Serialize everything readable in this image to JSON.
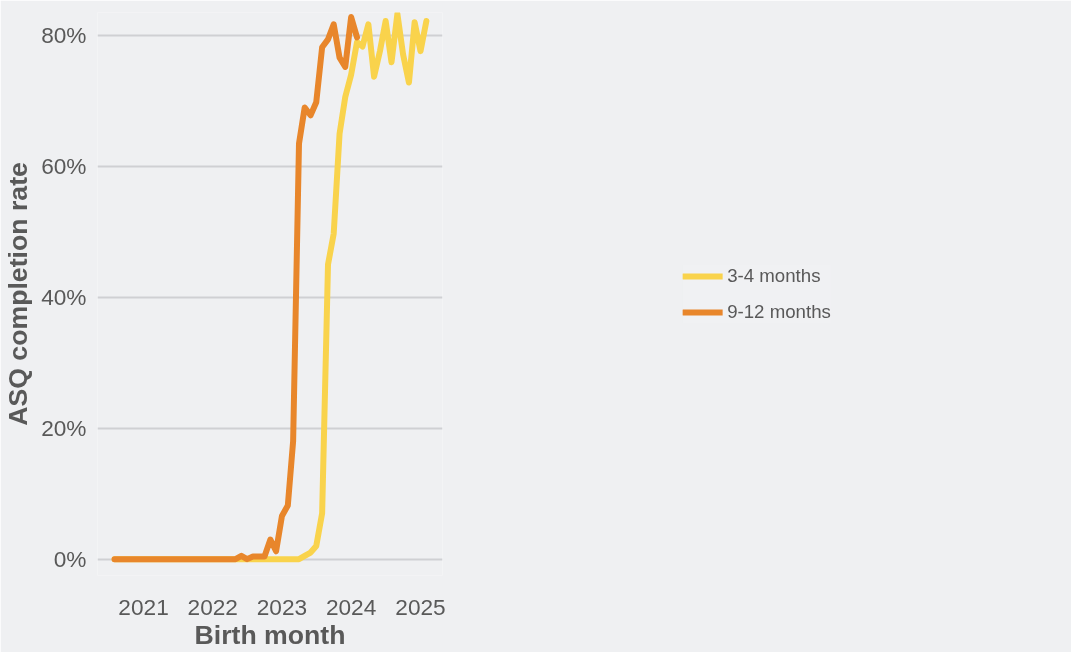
{
  "chart_data": {
    "type": "line",
    "xlabel": "Birth month",
    "ylabel": "ASQ completion rate",
    "x": [
      "2020-08",
      "2020-09",
      "2020-10",
      "2020-11",
      "2020-12",
      "2021-01",
      "2021-02",
      "2021-03",
      "2021-04",
      "2021-05",
      "2021-06",
      "2021-07",
      "2021-08",
      "2021-09",
      "2021-10",
      "2021-11",
      "2021-12",
      "2022-01",
      "2022-02",
      "2022-03",
      "2022-04",
      "2022-05",
      "2022-06",
      "2022-07",
      "2022-08",
      "2022-09",
      "2022-10",
      "2022-11",
      "2022-12",
      "2023-01",
      "2023-02",
      "2023-03",
      "2023-04",
      "2023-05",
      "2023-06",
      "2023-07",
      "2023-08",
      "2023-09",
      "2023-10",
      "2023-11",
      "2023-12",
      "2024-01",
      "2024-02",
      "2024-03",
      "2024-04",
      "2024-05",
      "2024-06",
      "2024-07",
      "2024-08",
      "2024-09",
      "2024-10",
      "2024-11",
      "2024-12",
      "2025-01",
      "2025-02"
    ],
    "series": [
      {
        "name": "3-4 months",
        "color": "#f9d34c",
        "values": [
          0,
          0,
          0,
          0,
          0,
          0,
          0,
          0,
          0,
          0,
          0,
          0,
          0,
          0,
          0,
          0,
          0,
          0,
          0,
          0,
          0,
          0,
          0,
          0,
          0,
          0,
          0,
          0,
          0,
          0,
          0,
          0,
          0,
          0.5,
          1,
          2,
          7,
          45,
          49.7,
          65,
          70.6,
          74,
          79,
          78.3,
          81.7,
          73.7,
          77.6,
          82.2,
          75.9,
          83.3,
          77.1,
          72.8,
          82,
          77.6,
          82.2
        ]
      },
      {
        "name": "9-12 months",
        "color": "#e8862b",
        "values": [
          0,
          0,
          0,
          0,
          0,
          0,
          0,
          0,
          0,
          0,
          0,
          0,
          0,
          0,
          0,
          0,
          0,
          0,
          0,
          0,
          0,
          0,
          0.5,
          0,
          0.4,
          0.4,
          0.4,
          3,
          1.2,
          6.6,
          8.2,
          18,
          63.5,
          69,
          67.8,
          69.8,
          78.2,
          79.4,
          81.7,
          76.6,
          75.2,
          82.8,
          79.7,
          null,
          null,
          null,
          null,
          null,
          null,
          null,
          null,
          null,
          null,
          null,
          null
        ]
      }
    ],
    "xlim": [
      "2020-05-03",
      "2025-04-27"
    ],
    "xticks": [
      {
        "value": "2021",
        "label": "2021"
      },
      {
        "value": "2022",
        "label": "2022"
      },
      {
        "value": "2023",
        "label": "2023"
      },
      {
        "value": "2024",
        "label": "2024"
      },
      {
        "value": "2025",
        "label": "2025"
      }
    ],
    "ylim": [
      -2.5,
      83.5
    ],
    "yticks": [
      {
        "value": 0,
        "label": "0%"
      },
      {
        "value": 20,
        "label": "20%"
      },
      {
        "value": 40,
        "label": "40%"
      },
      {
        "value": 60,
        "label": "60%"
      },
      {
        "value": 80,
        "label": "80%"
      }
    ],
    "grid": "y",
    "legend": "right",
    "marker": "none",
    "line_style": "solid"
  }
}
